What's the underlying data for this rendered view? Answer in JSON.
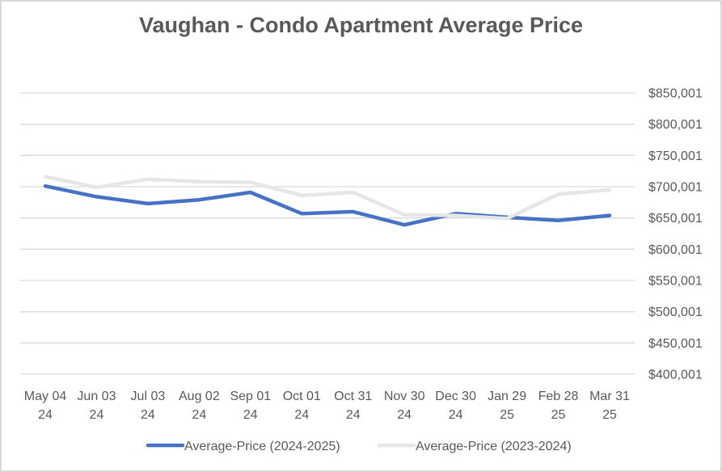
{
  "chart_data": {
    "type": "line",
    "title": "Vaughan - Condo Apartment Average Price",
    "xlabel": "",
    "ylabel": "",
    "categories": [
      [
        "May 04",
        "24"
      ],
      [
        "Jun 03",
        "24"
      ],
      [
        "Jul 03",
        "24"
      ],
      [
        "Aug 02",
        "24"
      ],
      [
        "Sep 01",
        "24"
      ],
      [
        "Oct 01",
        "24"
      ],
      [
        "Oct 31",
        "24"
      ],
      [
        "Nov 30",
        "24"
      ],
      [
        "Dec 30",
        "24"
      ],
      [
        "Jan 29",
        "25"
      ],
      [
        "Feb 28",
        "25"
      ],
      [
        "Mar 31",
        "25"
      ]
    ],
    "y_ticks": [
      "$400,001",
      "$450,001",
      "$500,001",
      "$550,001",
      "$600,001",
      "$650,001",
      "$700,001",
      "$750,001",
      "$800,001",
      "$850,001"
    ],
    "ylim": [
      400001,
      850001
    ],
    "y_axis_side": "right",
    "grid": true,
    "legend_position": "bottom",
    "series": [
      {
        "name": "Average-Price (2024-2025)",
        "color": "#4472c4",
        "values": [
          701000,
          684000,
          673000,
          679000,
          691000,
          657000,
          660000,
          639000,
          657000,
          651000,
          646000,
          654000
        ]
      },
      {
        "name": "Average-Price (2023-2024)",
        "color": "#e7e6e6",
        "values": [
          716000,
          699000,
          712000,
          708000,
          707000,
          686000,
          691000,
          655000,
          654000,
          649000,
          688000,
          695000
        ]
      }
    ]
  }
}
